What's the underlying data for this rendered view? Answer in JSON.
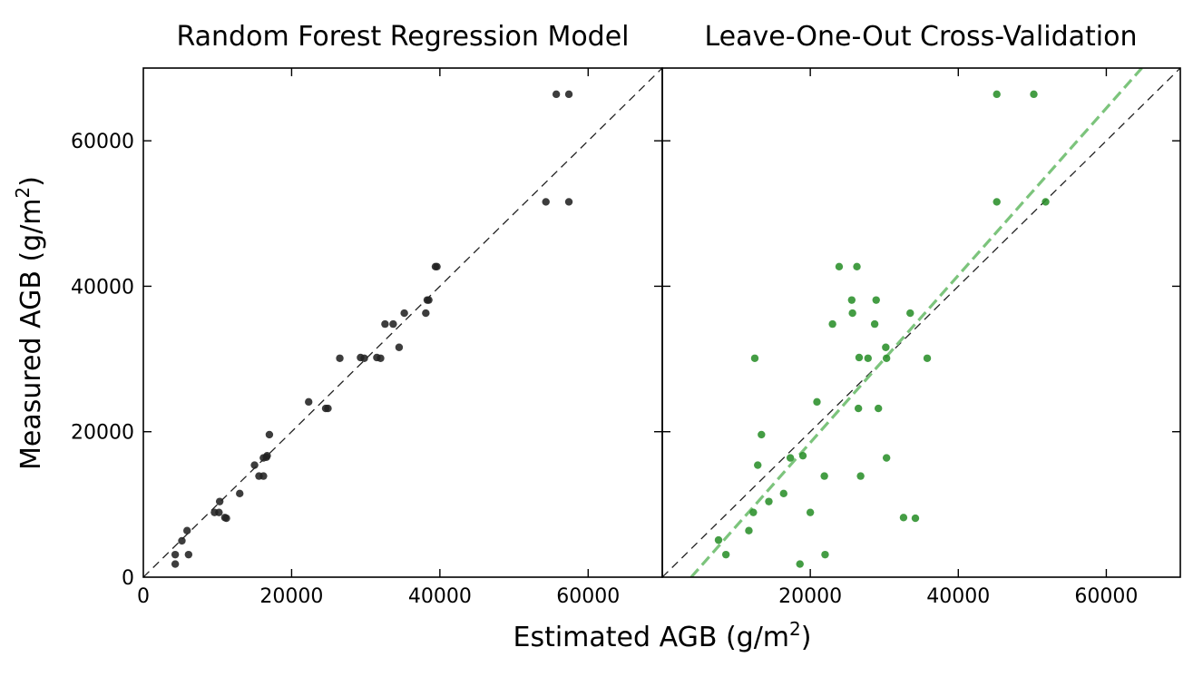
{
  "figure": {
    "xlabel_main": "Estimated AGB (g/m",
    "xlabel_sup": "2",
    "xlabel_end": ")",
    "ylabel_main": "Measured AGB (g/m",
    "ylabel_sup": "2",
    "ylabel_end": ")"
  },
  "colors": {
    "train_points": "#222222",
    "loocv_points": "#2a8f2a",
    "fit_line": "#7cc47c",
    "identity_line": "#222222"
  },
  "chart_data": [
    {
      "type": "scatter",
      "title": "Random Forest Regression Model",
      "xlim": [
        0,
        70000
      ],
      "ylim": [
        0,
        70000
      ],
      "xticks": [
        0,
        20000,
        40000,
        60000
      ],
      "yticks": [
        0,
        20000,
        40000,
        60000
      ],
      "xtick_labels": [
        "0",
        "20000",
        "40000",
        "60000"
      ],
      "ytick_labels": [
        "0",
        "20000",
        "40000",
        "60000"
      ],
      "identity_line": true,
      "grid": false,
      "points": [
        [
          4300,
          1800
        ],
        [
          4300,
          3100
        ],
        [
          5200,
          5000
        ],
        [
          5900,
          6400
        ],
        [
          6100,
          3100
        ],
        [
          9600,
          8900
        ],
        [
          10200,
          8900
        ],
        [
          10300,
          10400
        ],
        [
          11000,
          8200
        ],
        [
          11200,
          8100
        ],
        [
          13000,
          11500
        ],
        [
          15000,
          15400
        ],
        [
          15600,
          13900
        ],
        [
          16200,
          13900
        ],
        [
          16200,
          16400
        ],
        [
          16600,
          16500
        ],
        [
          16700,
          16700
        ],
        [
          17000,
          19600
        ],
        [
          22300,
          24100
        ],
        [
          24600,
          23200
        ],
        [
          24900,
          23200
        ],
        [
          26500,
          30100
        ],
        [
          29300,
          30200
        ],
        [
          29800,
          30100
        ],
        [
          31500,
          30200
        ],
        [
          32000,
          30100
        ],
        [
          32600,
          34800
        ],
        [
          33700,
          34800
        ],
        [
          34500,
          31600
        ],
        [
          35200,
          36300
        ],
        [
          38100,
          36300
        ],
        [
          38300,
          38100
        ],
        [
          38500,
          38100
        ],
        [
          39400,
          42700
        ],
        [
          39600,
          42700
        ],
        [
          54300,
          51600
        ],
        [
          55700,
          66400
        ],
        [
          57400,
          66400
        ],
        [
          57400,
          51600
        ]
      ]
    },
    {
      "type": "scatter",
      "title": "Leave-One-Out Cross-Validation",
      "xlim": [
        0,
        70000
      ],
      "ylim": [
        0,
        70000
      ],
      "xticks": [
        0,
        20000,
        40000,
        60000
      ],
      "yticks": [
        0,
        20000,
        40000,
        60000
      ],
      "xtick_labels": [
        "0",
        "20000",
        "40000",
        "60000"
      ],
      "ytick_labels": [],
      "identity_line": true,
      "fit_line": [
        [
          3900,
          0
        ],
        [
          64800,
          70000
        ]
      ],
      "grid": false,
      "points": [
        [
          7600,
          5100
        ],
        [
          8600,
          3100
        ],
        [
          11700,
          6400
        ],
        [
          12300,
          8900
        ],
        [
          12500,
          30100
        ],
        [
          12900,
          15400
        ],
        [
          13400,
          19600
        ],
        [
          14400,
          10400
        ],
        [
          16400,
          11500
        ],
        [
          17300,
          16400
        ],
        [
          18600,
          1800
        ],
        [
          19000,
          16700
        ],
        [
          20000,
          8900
        ],
        [
          20900,
          24100
        ],
        [
          21900,
          13900
        ],
        [
          22000,
          3100
        ],
        [
          23000,
          34800
        ],
        [
          23900,
          42700
        ],
        [
          25600,
          38100
        ],
        [
          25700,
          36300
        ],
        [
          26300,
          42700
        ],
        [
          26500,
          23200
        ],
        [
          26600,
          30200
        ],
        [
          26800,
          13900
        ],
        [
          27800,
          30100
        ],
        [
          28700,
          34800
        ],
        [
          28900,
          38100
        ],
        [
          29200,
          23200
        ],
        [
          30200,
          31600
        ],
        [
          30300,
          30100
        ],
        [
          30300,
          16400
        ],
        [
          32600,
          8200
        ],
        [
          33500,
          36300
        ],
        [
          34200,
          8100
        ],
        [
          35800,
          30100
        ],
        [
          45200,
          66400
        ],
        [
          45200,
          51600
        ],
        [
          50200,
          66400
        ],
        [
          51800,
          51600
        ]
      ]
    }
  ]
}
